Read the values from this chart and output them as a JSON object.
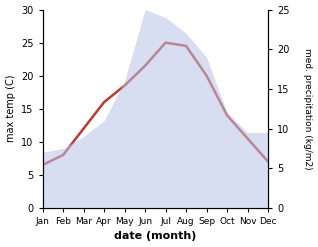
{
  "months": [
    "Jan",
    "Feb",
    "Mar",
    "Apr",
    "May",
    "Jun",
    "Jul",
    "Aug",
    "Sep",
    "Oct",
    "Nov",
    "Dec"
  ],
  "temperature": [
    6.5,
    8.0,
    12.0,
    16.0,
    18.5,
    21.5,
    25.0,
    24.5,
    20.0,
    14.0,
    10.5,
    7.0
  ],
  "precipitation": [
    7.0,
    7.5,
    9.0,
    11.0,
    16.0,
    25.0,
    24.0,
    22.0,
    19.0,
    12.0,
    9.5,
    9.5
  ],
  "temp_color": "#c0392b",
  "precip_fill_color": "#b8c4e8",
  "left_ylim": [
    0,
    30
  ],
  "right_ylim": [
    0,
    25
  ],
  "left_yticks": [
    0,
    5,
    10,
    15,
    20,
    25,
    30
  ],
  "right_yticks": [
    0,
    5,
    10,
    15,
    20,
    25
  ],
  "xlabel": "date (month)",
  "ylabel_left": "max temp (C)",
  "ylabel_right": "med. precipitation (kg/m2)",
  "temp_linewidth": 1.8,
  "figure_facecolor": "#ffffff"
}
